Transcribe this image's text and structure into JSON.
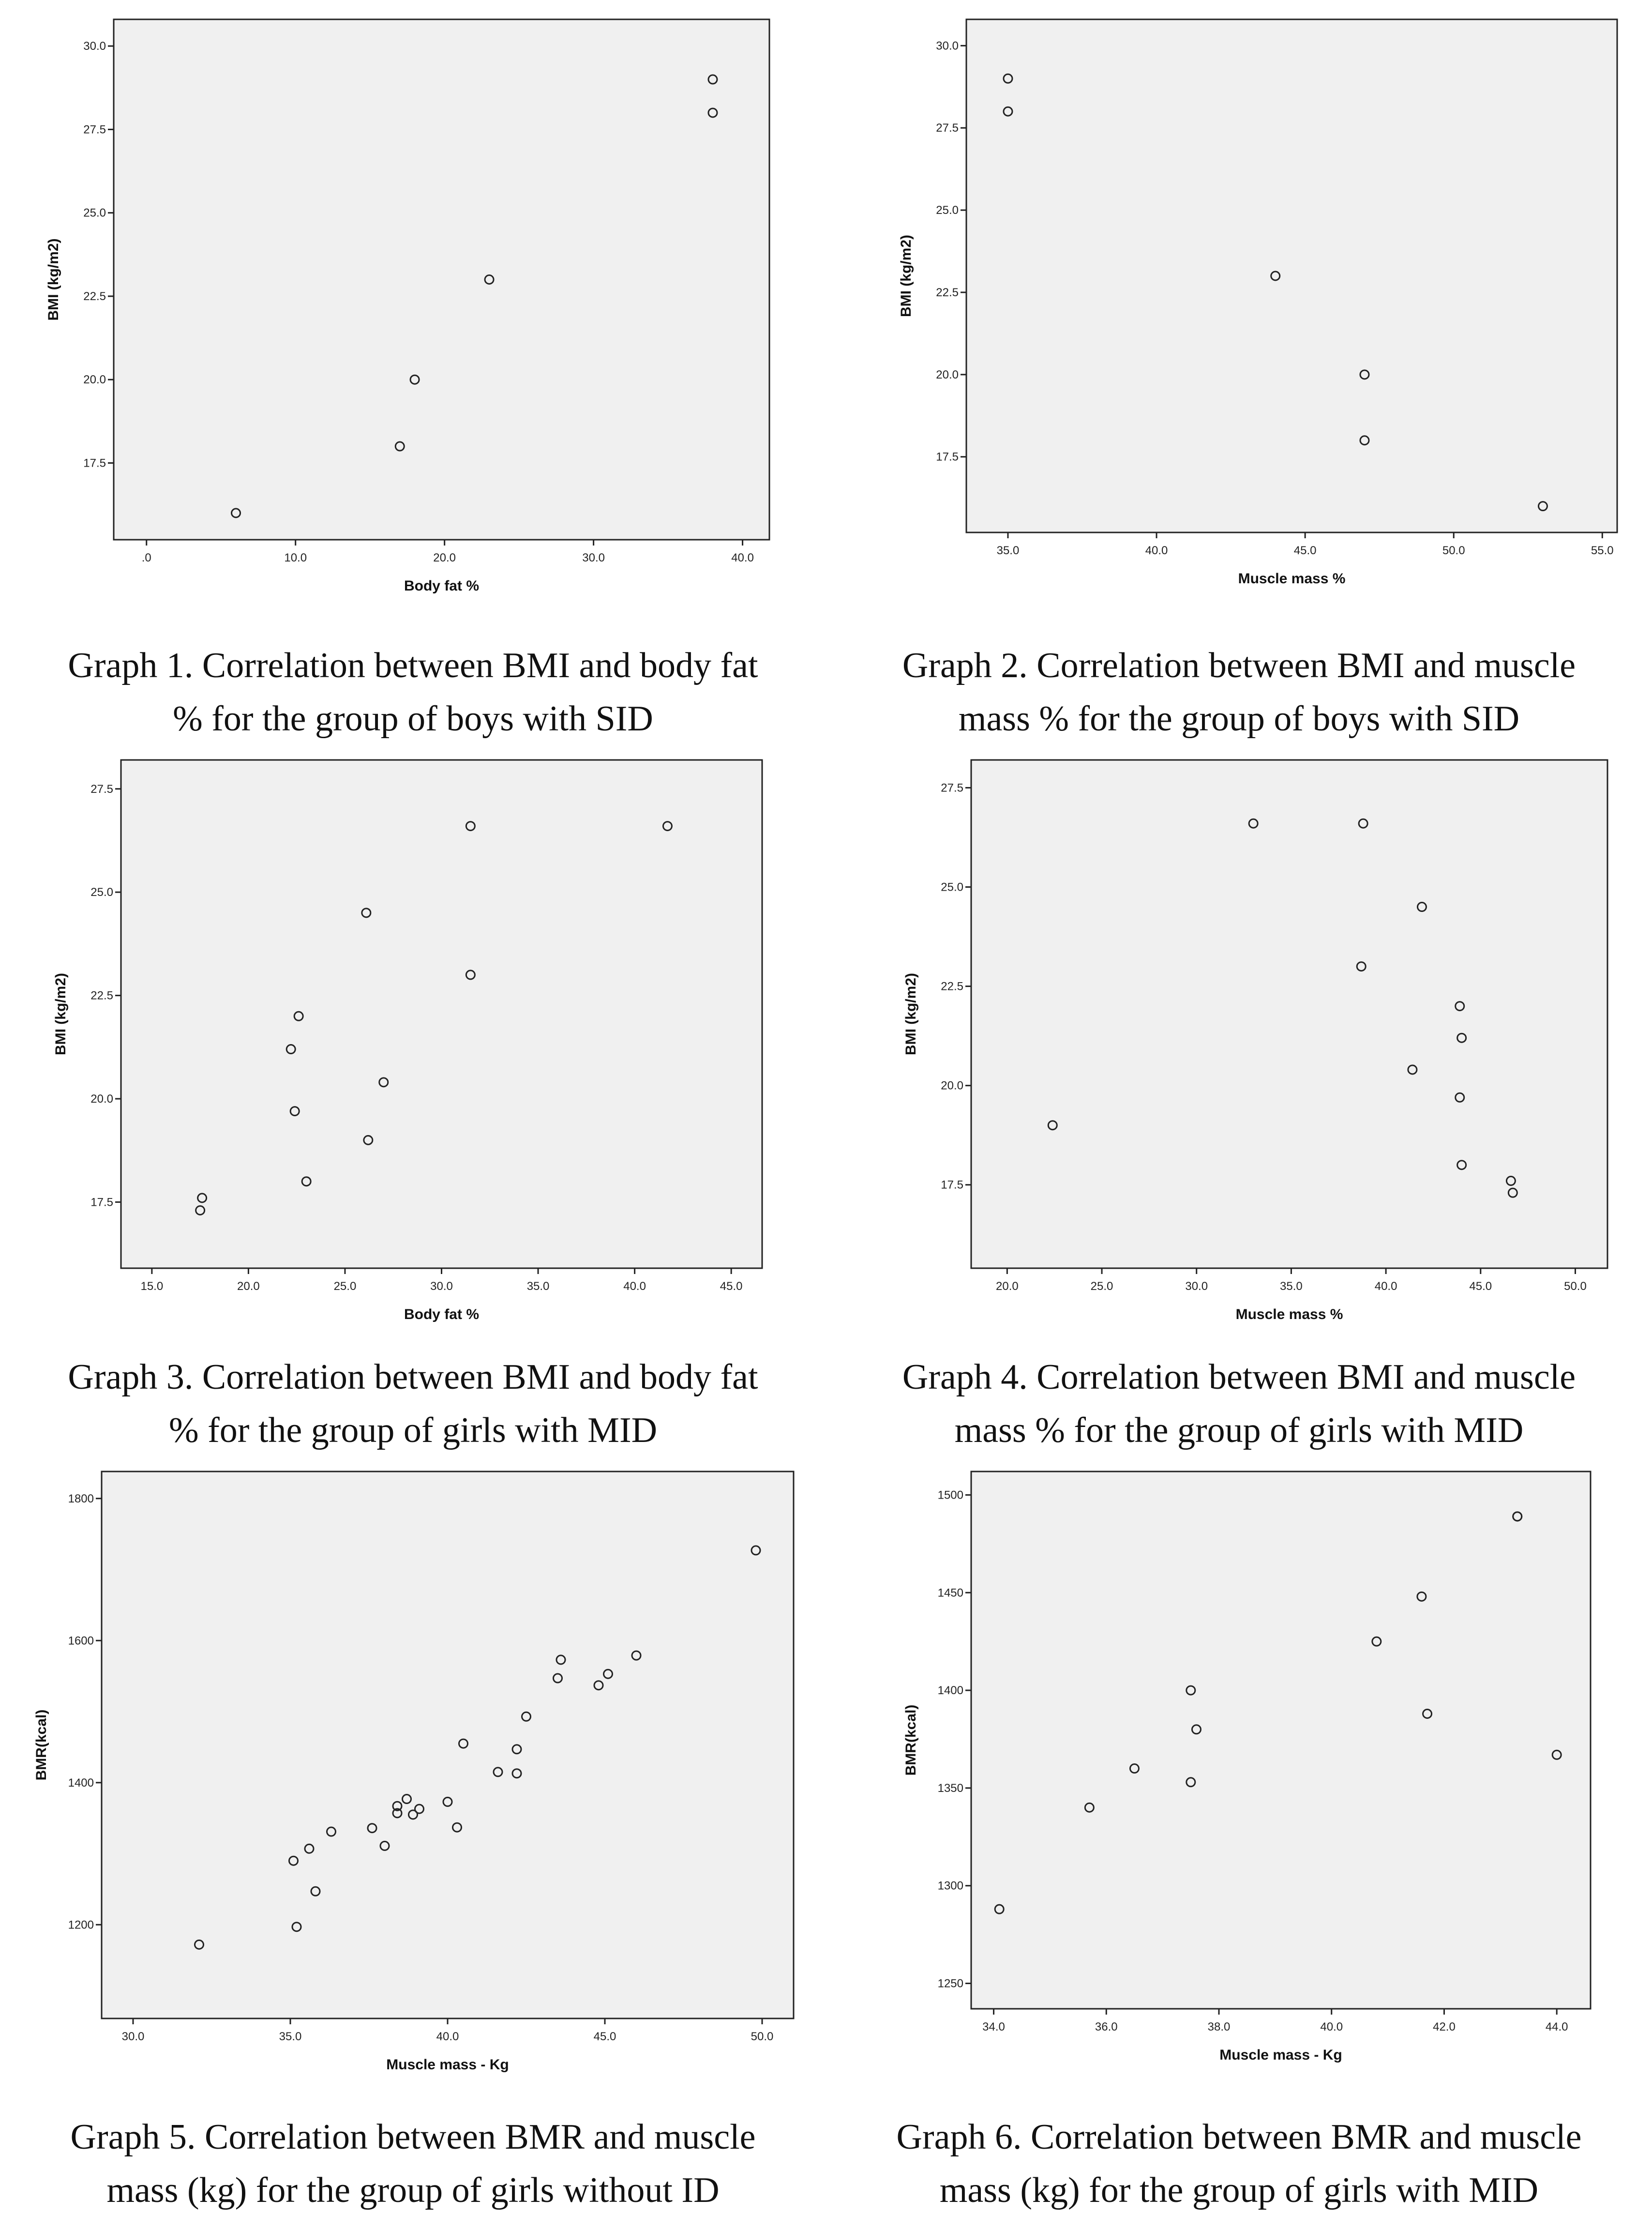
{
  "chart_data": [
    {
      "id": "g1",
      "type": "scatter",
      "title": "",
      "caption": [
        "Graph 1. Correlation between BMI and body fat",
        "% for the group of boys with SID"
      ],
      "xlabel": "Body fat %",
      "ylabel": "BMI (kg/m2)",
      "xlim": [
        -2.2,
        41.8
      ],
      "ylim": [
        15.2,
        30.8
      ],
      "xticks": [
        0,
        10,
        20,
        30,
        40
      ],
      "xtick_labels": [
        ".0",
        "10.0",
        "20.0",
        "30.0",
        "40.0"
      ],
      "yticks": [
        17.5,
        20,
        22.5,
        25,
        27.5,
        30
      ],
      "ytick_labels": [
        "17.5",
        "20.0",
        "22.5",
        "25.0",
        "27.5",
        "30.0"
      ],
      "x": [
        6,
        17,
        18,
        23,
        38,
        38
      ],
      "y": [
        16,
        18,
        20,
        23,
        28,
        29
      ]
    },
    {
      "id": "g2",
      "type": "scatter",
      "title": "",
      "caption": [
        "Graph 2. Correlation between BMI and muscle",
        "mass % for the group of boys with SID"
      ],
      "xlabel": "Muscle mass %",
      "ylabel": "BMI (kg/m2)",
      "xlim": [
        33.6,
        55.5
      ],
      "ylim": [
        15.2,
        30.8
      ],
      "xticks": [
        35,
        40,
        45,
        50,
        55
      ],
      "xtick_labels": [
        "35.0",
        "40.0",
        "45.0",
        "50.0",
        "55.0"
      ],
      "yticks": [
        17.5,
        20,
        22.5,
        25,
        27.5,
        30
      ],
      "ytick_labels": [
        "17.5",
        "20.0",
        "22.5",
        "25.0",
        "27.5",
        "30.0"
      ],
      "x": [
        35,
        35,
        44,
        47,
        47,
        53
      ],
      "y": [
        29,
        28,
        23,
        20,
        18,
        16
      ]
    },
    {
      "id": "g3",
      "type": "scatter",
      "title": "",
      "caption": [
        "Graph 3. Correlation between BMI and body fat",
        "% for the group of girls with MID"
      ],
      "xlabel": "Body fat %",
      "ylabel": "BMI (kg/m2)",
      "xlim": [
        13.4,
        46.6
      ],
      "ylim": [
        15.9,
        28.2
      ],
      "xticks": [
        15,
        20,
        25,
        30,
        35,
        40,
        45
      ],
      "xtick_labels": [
        "15.0",
        "20.0",
        "25.0",
        "30.0",
        "35.0",
        "40.0",
        "45.0"
      ],
      "yticks": [
        17.5,
        20,
        22.5,
        25,
        27.5
      ],
      "ytick_labels": [
        "17.5",
        "20.0",
        "22.5",
        "25.0",
        "27.5"
      ],
      "x": [
        17.5,
        17.6,
        22.2,
        22.4,
        22.6,
        23,
        26.1,
        26.2,
        27,
        31.5,
        31.5,
        41.7
      ],
      "y": [
        17.3,
        17.6,
        21.2,
        19.7,
        22,
        18,
        24.5,
        19,
        20.4,
        26.6,
        23,
        26.6
      ]
    },
    {
      "id": "g4",
      "type": "scatter",
      "title": "",
      "caption": [
        "Graph 4. Correlation between BMI and muscle",
        "mass % for the group of girls with MID"
      ],
      "xlabel": "Muscle mass %",
      "ylabel": "BMI (kg/m2)",
      "xlim": [
        18.1,
        51.7
      ],
      "ylim": [
        15.4,
        28.2
      ],
      "xticks": [
        20,
        25,
        30,
        35,
        40,
        45,
        50
      ],
      "xtick_labels": [
        "20.0",
        "25.0",
        "30.0",
        "35.0",
        "40.0",
        "45.0",
        "50.0"
      ],
      "yticks": [
        17.5,
        20,
        22.5,
        25,
        27.5
      ],
      "ytick_labels": [
        "17.5",
        "20.0",
        "22.5",
        "25.0",
        "27.5"
      ],
      "x": [
        22.4,
        33,
        38.7,
        38.8,
        41.4,
        41.9,
        43.9,
        43.9,
        44,
        44,
        46.6,
        46.7
      ],
      "y": [
        19,
        26.6,
        23,
        26.6,
        20.4,
        24.5,
        22,
        19.7,
        21.2,
        18,
        17.6,
        17.3
      ]
    },
    {
      "id": "g5",
      "type": "scatter",
      "title": "",
      "caption": [
        "Graph 5. Correlation between BMR and muscle",
        "mass (kg) for the group of girls without ID"
      ],
      "xlabel": "Muscle mass - Kg",
      "ylabel": "BMR(kcal)",
      "xlim": [
        29,
        51
      ],
      "ylim": [
        1068,
        1838
      ],
      "xticks": [
        30,
        35,
        40,
        45,
        50
      ],
      "xtick_labels": [
        "30.0",
        "35.0",
        "40.0",
        "45.0",
        "50.0"
      ],
      "yticks": [
        1200,
        1400,
        1600,
        1800
      ],
      "ytick_labels": [
        "1200",
        "1400",
        "1600",
        "1800"
      ],
      "x": [
        32.1,
        35.1,
        35.2,
        35.6,
        35.8,
        36.3,
        37.6,
        38,
        38.4,
        38.4,
        38.7,
        38.9,
        39.1,
        40,
        40.3,
        40.5,
        41.6,
        42.2,
        42.2,
        42.5,
        43.5,
        43.6,
        44.8,
        45.1,
        46,
        49.8
      ],
      "y": [
        1172,
        1290,
        1197,
        1307,
        1247,
        1331,
        1336,
        1311,
        1357,
        1367,
        1377,
        1355,
        1363,
        1373,
        1337,
        1455,
        1415,
        1447,
        1413,
        1493,
        1547,
        1573,
        1537,
        1553,
        1579,
        1727
      ]
    },
    {
      "id": "g6",
      "type": "scatter",
      "title": "",
      "caption": [
        "Graph 6. Correlation between BMR and muscle",
        "mass (kg) for the group of girls with MID"
      ],
      "xlabel": "Muscle mass - Kg",
      "ylabel": "BMR(kcal)",
      "xlim": [
        33.6,
        44.6
      ],
      "ylim": [
        1237,
        1512
      ],
      "xticks": [
        34,
        36,
        38,
        40,
        42,
        44
      ],
      "xtick_labels": [
        "34.0",
        "36.0",
        "38.0",
        "40.0",
        "42.0",
        "44.0"
      ],
      "yticks": [
        1250,
        1300,
        1350,
        1400,
        1450,
        1500
      ],
      "ytick_labels": [
        "1250",
        "1300",
        "1350",
        "1400",
        "1450",
        "1500"
      ],
      "x": [
        34.1,
        35.7,
        36.5,
        37.5,
        37.5,
        37.6,
        40.8,
        41.6,
        41.7,
        43.3,
        43.3,
        44
      ],
      "y": [
        1288,
        1340,
        1360,
        1353,
        1400,
        1380,
        1425,
        1448,
        1388,
        1489,
        1489,
        1367
      ]
    }
  ]
}
